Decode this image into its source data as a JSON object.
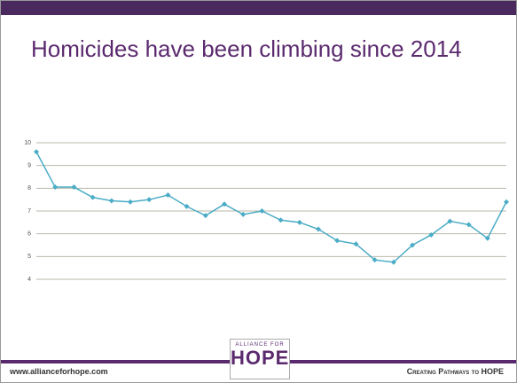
{
  "header": {
    "title": "Homicides have been climbing since 2014"
  },
  "footer": {
    "url": "www.allianceforhope.com",
    "tagline": "Creating Pathways to HOPE",
    "logo_top": "ALLIANCE FOR",
    "logo": "HOPE"
  },
  "chart_data": {
    "type": "line",
    "categories": [
      null,
      null,
      null,
      null,
      null,
      null,
      null,
      null,
      null,
      null,
      null,
      null,
      null,
      null,
      null,
      null,
      null,
      null,
      null,
      null,
      null,
      null,
      null,
      null,
      null,
      null
    ],
    "series": [
      {
        "name": null,
        "color": "#4bacc6",
        "values": [
          9.6,
          8.05,
          8.05,
          7.6,
          7.45,
          7.4,
          7.5,
          7.7,
          7.2,
          6.8,
          7.3,
          6.85,
          7.0,
          6.6,
          6.5,
          6.2,
          5.7,
          5.55,
          4.85,
          4.75,
          5.5,
          5.95,
          6.55,
          6.4,
          5.8,
          7.4
        ]
      }
    ],
    "ylim": [
      4,
      10
    ],
    "yticks": [
      4,
      5,
      6,
      7,
      8,
      9,
      10
    ],
    "grid": true
  }
}
